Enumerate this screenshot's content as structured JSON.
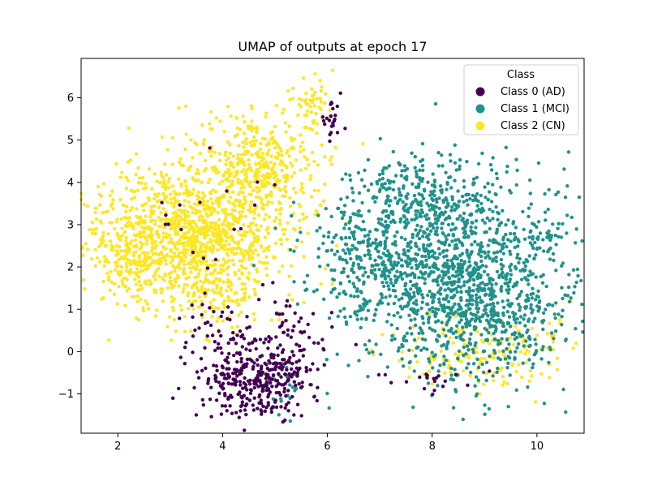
{
  "chart_data": {
    "type": "scatter",
    "title": "UMAP of outputs at epoch 17",
    "xlabel": "",
    "ylabel": "",
    "xlim": [
      1.3,
      10.9
    ],
    "ylim": [
      -1.93,
      6.93
    ],
    "x_ticks": [
      2,
      4,
      6,
      8,
      10
    ],
    "y_ticks": [
      -1,
      0,
      1,
      2,
      3,
      4,
      5,
      6
    ],
    "x_tick_labels": [
      "2",
      "4",
      "6",
      "8",
      "10"
    ],
    "y_tick_labels": [
      "−1",
      "0",
      "1",
      "2",
      "3",
      "4",
      "5",
      "6"
    ],
    "grid": false,
    "legend": {
      "title": "Class",
      "position": "top-right",
      "entries": [
        "Class 0 (AD)",
        "Class 1 (MCI)",
        "Class 2 (CN)"
      ]
    },
    "series": [
      {
        "name": "Class 0 (AD)",
        "color": "#440154",
        "approx_count": 500,
        "clusters": [
          {
            "center": [
              4.6,
              -0.6
            ],
            "spread": [
              0.55,
              0.45
            ],
            "count": 340
          },
          {
            "center": [
              5.3,
              0.3
            ],
            "spread": [
              0.35,
              0.5
            ],
            "count": 60
          },
          {
            "center": [
              3.9,
              0.6
            ],
            "spread": [
              0.4,
              0.4
            ],
            "count": 35
          },
          {
            "center": [
              6.1,
              5.5
            ],
            "spread": [
              0.12,
              0.25
            ],
            "count": 25
          },
          {
            "center": [
              7.9,
              -0.6
            ],
            "spread": [
              0.6,
              0.2
            ],
            "count": 20
          },
          {
            "center": [
              4.0,
              3.0
            ],
            "spread": [
              1.0,
              1.2
            ],
            "count": 20
          }
        ]
      },
      {
        "name": "Class 1 (MCI)",
        "color": "#21918c",
        "approx_count": 1900,
        "clusters": [
          {
            "center": [
              8.3,
              2.2
            ],
            "spread": [
              1.2,
              1.0
            ],
            "count": 1100
          },
          {
            "center": [
              8.9,
              0.7
            ],
            "spread": [
              0.9,
              0.8
            ],
            "count": 420
          },
          {
            "center": [
              7.9,
              3.7
            ],
            "spread": [
              0.6,
              0.45
            ],
            "count": 200
          },
          {
            "center": [
              6.7,
              2.2
            ],
            "spread": [
              0.5,
              0.8
            ],
            "count": 130
          },
          {
            "center": [
              10.2,
              2.6
            ],
            "spread": [
              0.15,
              0.15
            ],
            "count": 20
          },
          {
            "center": [
              5.3,
              -0.8
            ],
            "spread": [
              0.3,
              0.3
            ],
            "count": 30
          }
        ]
      },
      {
        "name": "Class 2 (CN)",
        "color": "#fde725",
        "approx_count": 1900,
        "clusters": [
          {
            "center": [
              3.4,
              2.8
            ],
            "spread": [
              0.9,
              0.8
            ],
            "count": 1150
          },
          {
            "center": [
              4.7,
              4.4
            ],
            "spread": [
              0.6,
              0.65
            ],
            "count": 360
          },
          {
            "center": [
              2.2,
              2.1
            ],
            "spread": [
              0.35,
              0.5
            ],
            "count": 130
          },
          {
            "center": [
              3.8,
              1.2
            ],
            "spread": [
              0.4,
              0.35
            ],
            "count": 90
          },
          {
            "center": [
              9.0,
              0.0
            ],
            "spread": [
              0.9,
              0.45
            ],
            "count": 170
          },
          {
            "center": [
              5.7,
              6.0
            ],
            "spread": [
              0.2,
              0.35
            ],
            "count": 50
          }
        ]
      }
    ]
  }
}
